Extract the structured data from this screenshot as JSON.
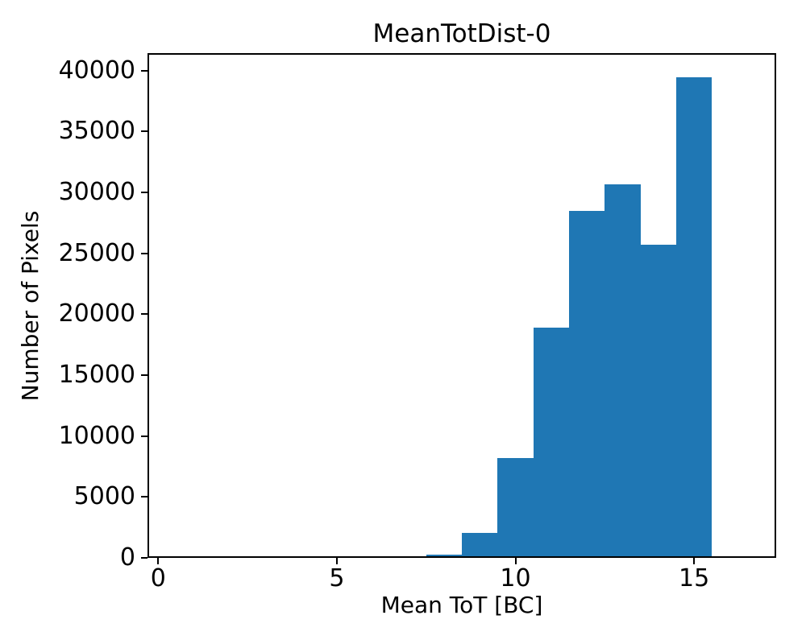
{
  "chart_data": {
    "type": "bar",
    "title": "MeanTotDist-0",
    "xlabel": "Mean ToT [BC]",
    "ylabel": "Number of Pixels",
    "bar_color": "#1f77b4",
    "axis_color": "#000000",
    "grid": false,
    "legend_position": "none",
    "bin_width": 1.0,
    "bins": [
      {
        "start": 7.5,
        "end": 8.5,
        "value": 300
      },
      {
        "start": 8.5,
        "end": 9.5,
        "value": 2050
      },
      {
        "start": 9.5,
        "end": 10.5,
        "value": 8200
      },
      {
        "start": 10.5,
        "end": 11.5,
        "value": 18900
      },
      {
        "start": 11.5,
        "end": 12.5,
        "value": 28500
      },
      {
        "start": 12.5,
        "end": 13.5,
        "value": 30650
      },
      {
        "start": 13.5,
        "end": 14.5,
        "value": 25700
      },
      {
        "start": 14.5,
        "end": 15.5,
        "value": 39450
      }
    ],
    "xlim": [
      -0.3,
      17.3
    ],
    "ylim": [
      0,
      41425
    ],
    "xticks": [
      0,
      5,
      10,
      15
    ],
    "yticks": [
      0,
      5000,
      10000,
      15000,
      20000,
      25000,
      30000,
      35000,
      40000
    ]
  }
}
